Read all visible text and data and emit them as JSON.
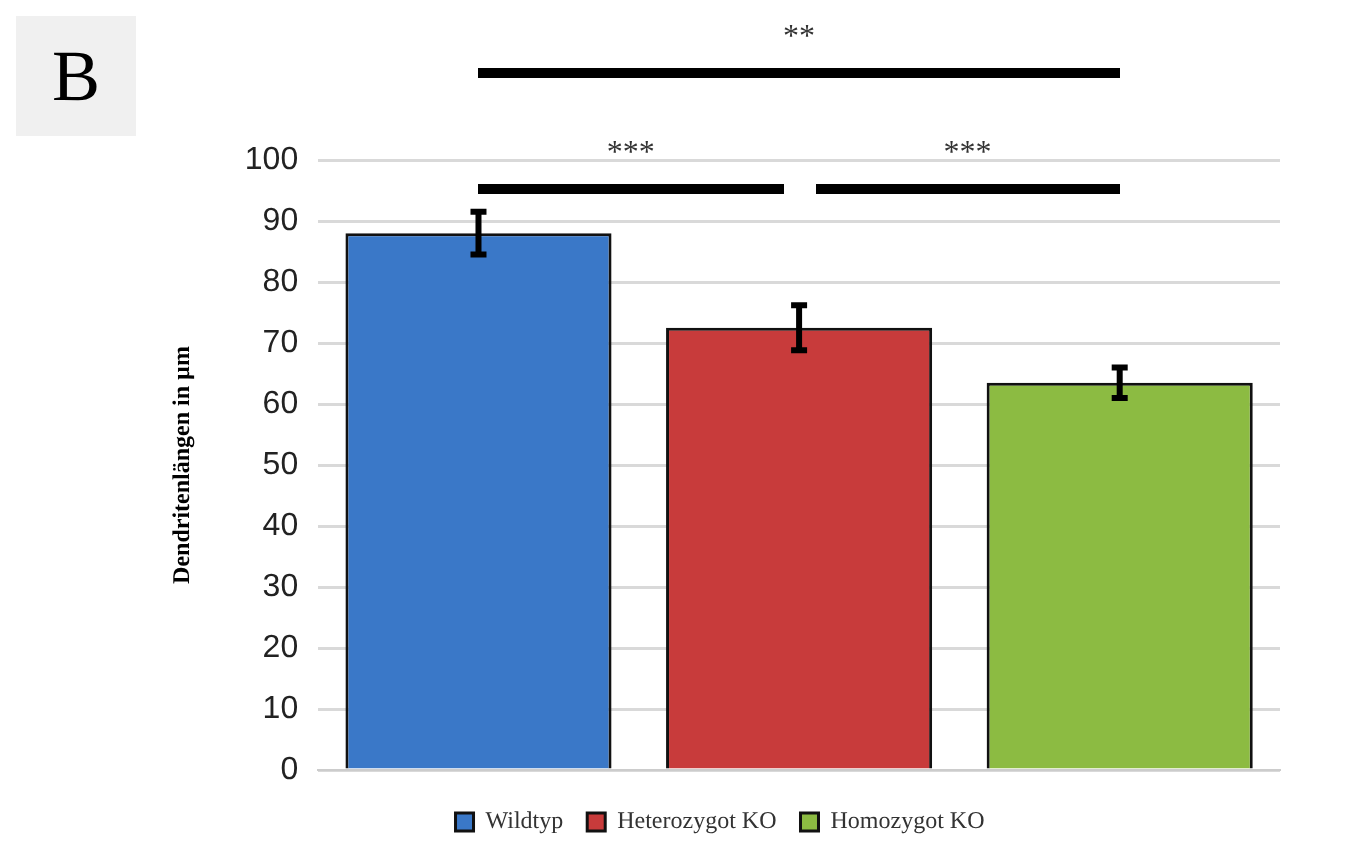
{
  "chart_data": {
    "type": "bar",
    "ylabel": "Dendritenlängen in µm",
    "categories": [
      null,
      null,
      null
    ],
    "series": [
      {
        "name": "Wildtyp",
        "color": "#3a78c8",
        "values": [
          88,
          null,
          null
        ],
        "errors": [
          3.5,
          null,
          null
        ]
      },
      {
        "name": "Heterozygot KO",
        "color": "#c83b3b",
        "values": [
          null,
          72.5,
          null
        ],
        "errors": [
          null,
          3.7,
          null
        ]
      },
      {
        "name": "Homozygot KO",
        "color": "#8cbb42",
        "values": [
          null,
          null,
          63.5
        ],
        "errors": [
          null,
          null,
          2.5
        ]
      }
    ],
    "ylim": [
      0,
      100
    ],
    "yticks": [
      0,
      10,
      20,
      30,
      40,
      50,
      60,
      70,
      80,
      90,
      100
    ],
    "grid": "y",
    "legend": "bottom",
    "tick_labels": "y",
    "annotations": [
      "B",
      "***",
      "***",
      "**"
    ]
  }
}
